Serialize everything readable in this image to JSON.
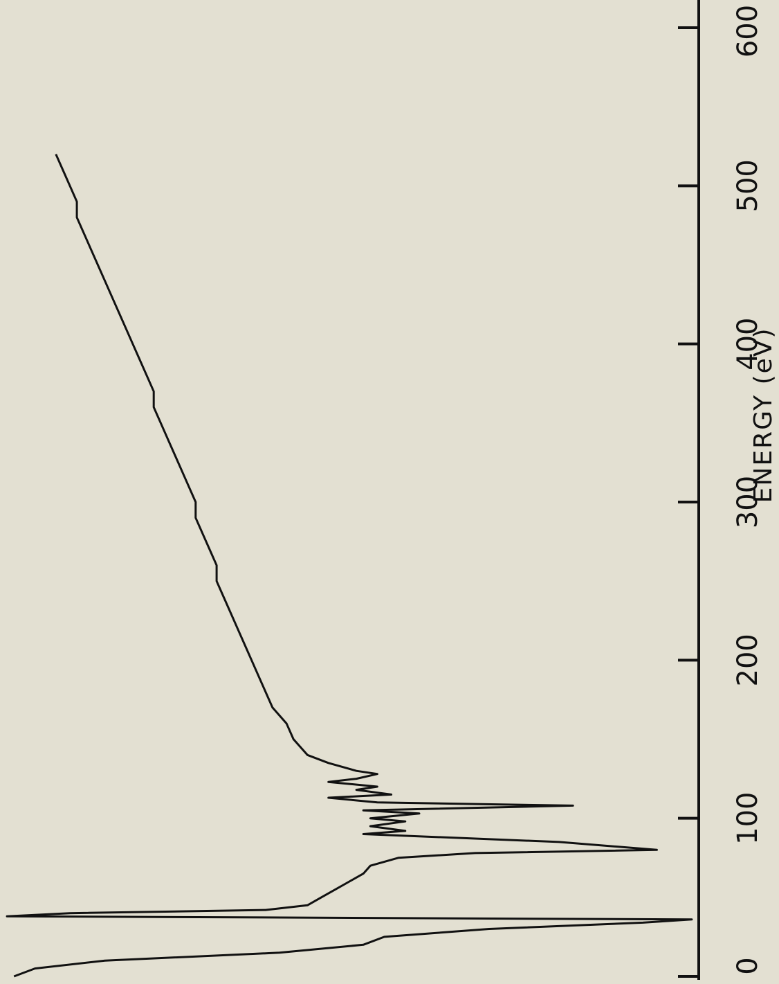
{
  "chart_data": {
    "type": "line",
    "title": "",
    "xlabel": "ENERGY (eV)",
    "ylabel": "",
    "xlim": [
      0,
      600
    ],
    "x_ticks": [
      0,
      100,
      200,
      300,
      400,
      500,
      600
    ],
    "x_tick_labels": [
      "0",
      "100",
      "200",
      "300",
      "400",
      "500",
      "600"
    ],
    "grid": false,
    "orientation": "rotated 90 degrees (energy axis runs top to bottom on the right side)",
    "series": [
      {
        "x": [
          0,
          5,
          10,
          15,
          20,
          25,
          30,
          34,
          36,
          38,
          40,
          42,
          45,
          50,
          55,
          60,
          65,
          70,
          75,
          78,
          80,
          85,
          90,
          92,
          95,
          98,
          100,
          103,
          105,
          108,
          110,
          113,
          115,
          118,
          120,
          123,
          125,
          128,
          130,
          135,
          140,
          150,
          160,
          170,
          180,
          190,
          200,
          210,
          220,
          230,
          240,
          250,
          260,
          270,
          280,
          290,
          300,
          310,
          320,
          330,
          340,
          350,
          360,
          370,
          380,
          390,
          400,
          410,
          420,
          430,
          440,
          450,
          460,
          470,
          480,
          490,
          500,
          510,
          520
        ],
        "y": [
          98,
          95,
          85,
          60,
          48,
          45,
          30,
          8,
          1,
          99,
          90,
          62,
          56,
          54,
          52,
          50,
          48,
          47,
          43,
          32,
          6,
          20,
          48,
          42,
          47,
          42,
          47,
          40,
          48,
          18,
          46,
          53,
          44,
          49,
          46,
          53,
          49,
          46,
          49,
          53,
          56,
          58,
          59,
          61,
          62,
          63,
          64,
          65,
          66,
          67,
          68,
          69,
          69,
          70,
          71,
          72,
          72,
          73,
          74,
          75,
          76,
          77,
          78,
          78,
          79,
          80,
          81,
          82,
          83,
          84,
          85,
          86,
          87,
          88,
          89,
          89,
          90,
          91,
          92
        ]
      }
    ]
  }
}
